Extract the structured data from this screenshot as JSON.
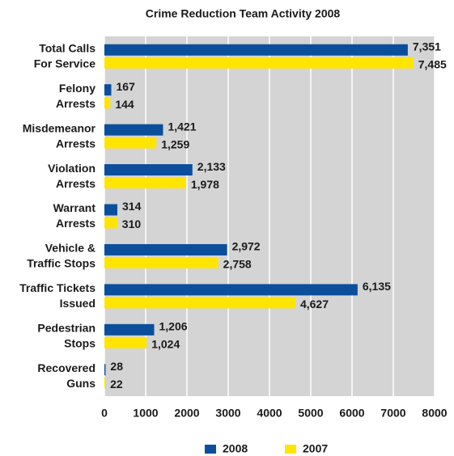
{
  "chart_data": {
    "type": "hbar",
    "title": "Crime Reduction Team Activity 2008",
    "categories": [
      [
        "Total Calls",
        "For Service"
      ],
      [
        "Felony",
        "Arrests"
      ],
      [
        "Misdemeanor",
        "Arrests"
      ],
      [
        "Violation",
        "Arrests"
      ],
      [
        "Warrant",
        "Arrests"
      ],
      [
        "Vehicle &",
        "Traffic Stops"
      ],
      [
        "Traffic Tickets",
        "Issued"
      ],
      [
        "Pedestrian",
        "Stops"
      ],
      [
        "Recovered",
        "Guns"
      ]
    ],
    "series": [
      {
        "name": "2008",
        "color": "#0b4f9c",
        "values": [
          7351,
          167,
          1421,
          2133,
          314,
          2972,
          6135,
          1206,
          28
        ],
        "value_labels": [
          "7,351",
          "167",
          "1,421",
          "2,133",
          "314",
          "2,972",
          "6,135",
          "1,206",
          "28"
        ]
      },
      {
        "name": "2007",
        "color": "#ffe500",
        "values": [
          7485,
          144,
          1259,
          1978,
          310,
          2758,
          4627,
          1024,
          22
        ],
        "value_labels": [
          "7,485",
          "144",
          "1,259",
          "1,978",
          "310",
          "2,758",
          "4,627",
          "1,024",
          "22"
        ]
      }
    ],
    "xlim": [
      0,
      8000
    ],
    "xticks": [
      0,
      1000,
      2000,
      3000,
      4000,
      5000,
      6000,
      7000,
      8000
    ],
    "grid": true,
    "legend": "bottom"
  }
}
